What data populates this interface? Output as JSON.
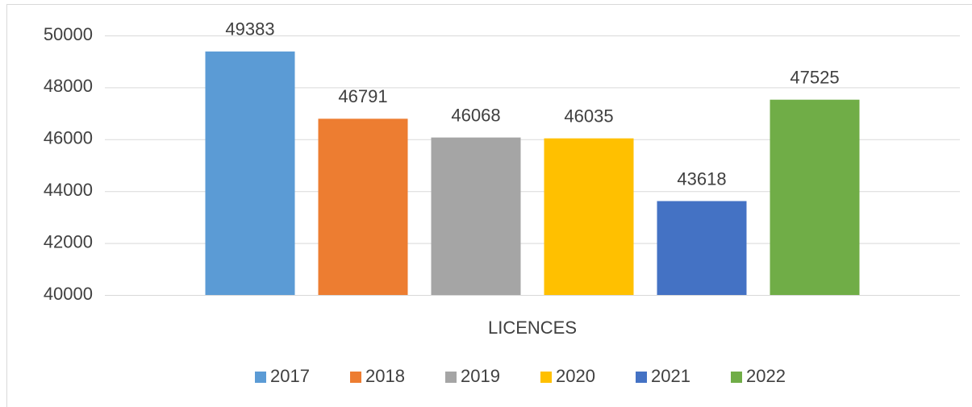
{
  "chart_data": {
    "type": "bar",
    "categories": [
      "LICENCES"
    ],
    "series": [
      {
        "name": "2017",
        "color": "#5b9bd5",
        "values": [
          49383
        ]
      },
      {
        "name": "2018",
        "color": "#ed7d31",
        "values": [
          46791
        ]
      },
      {
        "name": "2019",
        "color": "#a5a5a5",
        "values": [
          46068
        ]
      },
      {
        "name": "2020",
        "color": "#ffc000",
        "values": [
          46035
        ]
      },
      {
        "name": "2021",
        "color": "#4472c4",
        "values": [
          43618
        ]
      },
      {
        "name": "2022",
        "color": "#70ad47",
        "values": [
          47525
        ]
      }
    ],
    "ylim": [
      40000,
      50000
    ],
    "yticks": [
      40000,
      42000,
      44000,
      46000,
      48000,
      50000
    ],
    "grid": true,
    "legend": "bottom",
    "data_labels": true
  }
}
